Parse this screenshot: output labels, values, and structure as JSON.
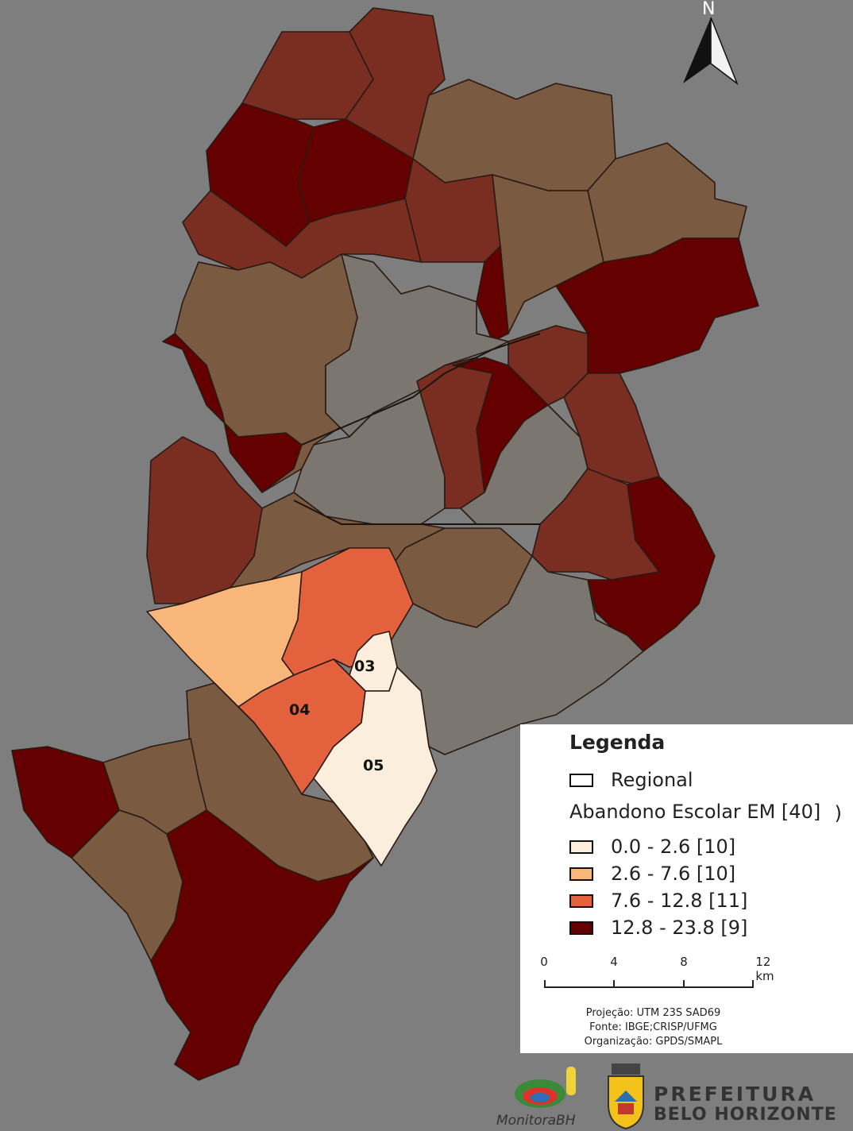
{
  "map": {
    "north_label": "N",
    "region_labels": [
      {
        "id": "03",
        "text": "03"
      },
      {
        "id": "04",
        "text": "04"
      },
      {
        "id": "05",
        "text": "05"
      }
    ],
    "class_colors": {
      "no_data": "#7b7670",
      "brown_mid": "#7a5a40",
      "brown_dark": "#7a2e22",
      "c1": "#fbeedd",
      "c2": "#f8b67a",
      "c3": "#e4613d",
      "c4": "#650000"
    }
  },
  "legend": {
    "title": "Legenda",
    "regional_label": "Regional",
    "variable_label": "Abandono Escolar EM [40]",
    "variable_label_stub": ")",
    "classes": [
      {
        "label": "0.0 - 2.6  [10]",
        "color": "#fbeedd"
      },
      {
        "label": "2.6 - 7.6  [10]",
        "color": "#f8b67a"
      },
      {
        "label": "7.6 - 12.8  [11]",
        "color": "#e4613d"
      },
      {
        "label": "12.8 - 23.8  [9]",
        "color": "#650000"
      }
    ],
    "scale": {
      "ticks": [
        "0",
        "4",
        "8",
        "12 km"
      ]
    },
    "credits": [
      "Projeção: UTM 23S SAD69",
      "Fonte: IBGE;CRISP/UFMG",
      "Organização: GPDS/SMAPL"
    ]
  },
  "logos": {
    "monitora_text": "MonitoraBH",
    "prefeitura_line1": "PREFEITURA",
    "prefeitura_line2": "BELO HORIZONTE"
  }
}
